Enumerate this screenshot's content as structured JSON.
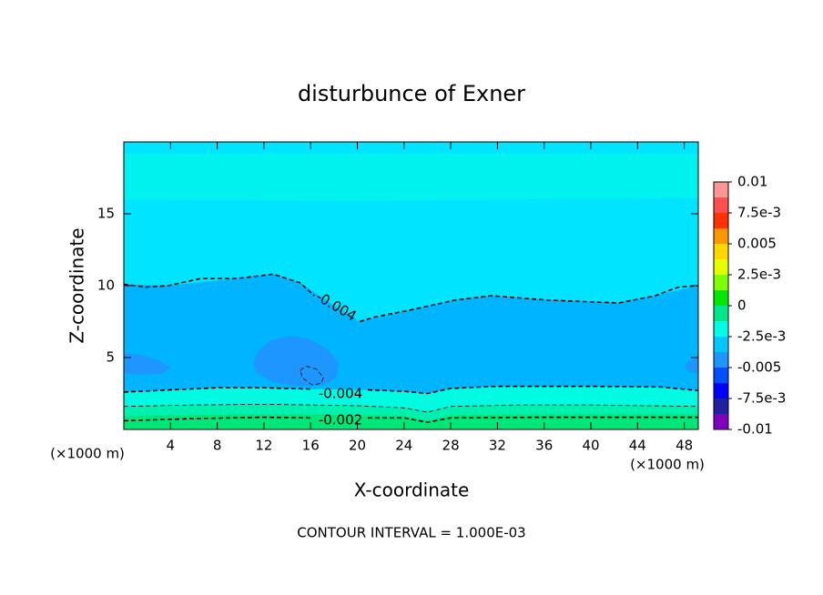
{
  "chart_data": {
    "type": "contour",
    "title": "disturbunce of Exner",
    "xlabel": "X-coordinate",
    "ylabel": "Z-coordinate",
    "x_unit_left": "(×1000 m)",
    "x_unit_right": "(×1000 m)",
    "annotation": "CONTOUR INTERVAL = 1.000E-03",
    "xlim": [
      0,
      49.2
    ],
    "ylim": [
      0,
      20
    ],
    "xticks": [
      4,
      8,
      12,
      16,
      20,
      24,
      28,
      32,
      36,
      40,
      44,
      48
    ],
    "yticks": [
      5,
      10,
      15
    ],
    "regions": [
      {
        "level": -0.003,
        "color": "#00e4ff",
        "x": [
          0,
          49.2,
          49.2,
          0
        ],
        "y": [
          0,
          0,
          20,
          20
        ]
      },
      {
        "level": -0.0025,
        "color": "#00f2ee",
        "x": [
          0,
          20,
          49.2,
          49.2,
          0
        ],
        "y": [
          16,
          15.9,
          16.1,
          19.2,
          19.2
        ]
      },
      {
        "level": -0.004,
        "color": "#00b4ff",
        "x": [
          0,
          3.8,
          9.7,
          12.8,
          15.1,
          18,
          20.2,
          24.5,
          28.4,
          31.5,
          36.2,
          42.4,
          45.5,
          49.2,
          49.2,
          40,
          32,
          28,
          26,
          24,
          20,
          16,
          12,
          8,
          4,
          0
        ],
        "y": [
          10.1,
          10,
          10.5,
          10.8,
          10.2,
          8.6,
          7.5,
          8.3,
          9.0,
          9.3,
          9.0,
          8.8,
          9.3,
          10.0,
          2.7,
          3.0,
          3.0,
          2.85,
          2.5,
          2.65,
          2.75,
          2.8,
          2.9,
          2.9,
          2.75,
          2.6
        ]
      },
      {
        "level": -0.005,
        "color": "#1e96ff",
        "x": [
          11.1,
          11.5,
          12.6,
          14.2,
          15.9,
          17.4,
          18.4,
          18.2,
          17.0,
          15.0,
          12.8,
          11.4
        ],
        "y": [
          4.6,
          5.5,
          6.2,
          6.5,
          6.3,
          5.6,
          4.6,
          3.6,
          3.1,
          3.0,
          3.3,
          3.9
        ]
      },
      {
        "level": -0.0045,
        "color": "#1e96ff",
        "x": [
          0,
          1.5,
          3.0,
          4.0,
          3.4,
          1.8,
          0
        ],
        "y": [
          5.3,
          5.2,
          4.8,
          4.3,
          3.9,
          3.8,
          3.9
        ]
      },
      {
        "level": -0.0044,
        "color": "#1e96ff",
        "x": [
          49.2,
          48.3,
          48,
          48.4,
          49.2
        ],
        "y": [
          5.0,
          4.7,
          4.4,
          4.0,
          3.9
        ]
      },
      {
        "level": -0.0035,
        "color": "#00fae2",
        "x": [
          0,
          4,
          8,
          12,
          16,
          20,
          24,
          26,
          28,
          32,
          40,
          46,
          49.2,
          49.2,
          0
        ],
        "y": [
          2.6,
          2.75,
          2.9,
          2.9,
          2.8,
          2.75,
          2.65,
          2.5,
          2.85,
          3.0,
          3.0,
          2.95,
          2.7,
          0,
          0
        ]
      },
      {
        "level": -0.0025,
        "color": "#00f0b0",
        "x": [
          0,
          6,
          12,
          20,
          24,
          26,
          28,
          34,
          40,
          49.2,
          49.2,
          0
        ],
        "y": [
          1.6,
          1.7,
          1.75,
          1.65,
          1.5,
          1.2,
          1.6,
          1.7,
          1.7,
          1.6,
          0,
          0
        ]
      },
      {
        "level": -0.0015,
        "color": "#00e678",
        "x": [
          0,
          6,
          12,
          20,
          24,
          26,
          28,
          36,
          49.2,
          49.2,
          0
        ],
        "y": [
          0.95,
          1.0,
          1.05,
          1.0,
          0.95,
          0.6,
          1.0,
          1.05,
          1.05,
          0,
          0
        ]
      }
    ],
    "contours": [
      {
        "level": -0.004,
        "width": 1.5,
        "x": [
          0,
          1.9,
          3.8,
          6.6,
          9.7,
          12.8,
          15.1,
          16.3,
          18.2,
          20.2,
          21.4,
          24.5,
          28.4,
          31.5,
          36.2,
          42.4,
          45.5,
          47.5,
          49.2
        ],
        "y": [
          10.1,
          9.9,
          10,
          10.5,
          10.5,
          10.8,
          10.2,
          9.3,
          null,
          7.5,
          7.8,
          8.3,
          9.0,
          9.3,
          9.0,
          8.8,
          9.3,
          9.9,
          10.0
        ]
      },
      {
        "level": -0.004,
        "width": 1.5,
        "x": [
          0,
          4,
          8,
          12,
          16.2,
          18.5,
          20.9,
          24,
          26,
          28,
          32,
          40,
          46,
          49.2
        ],
        "y": [
          2.6,
          2.75,
          2.9,
          2.9,
          2.8,
          null,
          2.75,
          2.65,
          2.5,
          2.85,
          3.0,
          3.0,
          2.95,
          2.7
        ]
      },
      {
        "level": -0.003,
        "width": 0.8,
        "x": [
          0,
          6,
          12,
          20,
          24,
          26,
          28,
          34,
          40,
          49.2
        ],
        "y": [
          1.6,
          1.7,
          1.75,
          1.65,
          1.5,
          1.2,
          1.6,
          1.7,
          1.7,
          1.6
        ]
      },
      {
        "level": -0.002,
        "width": 1.5,
        "x": [
          0,
          6,
          12,
          16.2,
          18.5,
          20.9,
          24,
          26,
          28,
          36,
          49.2
        ],
        "y": [
          0.6,
          0.75,
          0.85,
          0.8,
          null,
          0.8,
          0.8,
          0.5,
          0.8,
          0.85,
          0.85
        ]
      },
      {
        "level": -0.005,
        "width": 0.8,
        "x": [
          15.1,
          15.6,
          16.5,
          17.1,
          16.9,
          16.1,
          15.3,
          15.1
        ],
        "y": [
          4.1,
          4.4,
          4.2,
          3.6,
          3.2,
          3.1,
          3.6,
          4.1
        ]
      }
    ],
    "colorbar": {
      "clim": [
        -0.01,
        0.01
      ],
      "colors": [
        "#8000c0",
        "#2020a0",
        "#0000ff",
        "#0050ff",
        "#1e96ff",
        "#00c8ff",
        "#00ffe6",
        "#00e68c",
        "#00e600",
        "#80ff00",
        "#e6ff00",
        "#ffd700",
        "#ff9600",
        "#ff3200",
        "#ff5050",
        "#ff9696"
      ],
      "ticks": [
        0.01,
        {
          "value": 0.0075,
          "label": "7.5e-3"
        },
        0.005,
        {
          "value": 0.0025,
          "label": "2.5e-3"
        },
        0,
        {
          "value": -0.0025,
          "label": "-2.5e-3"
        },
        -0.005,
        {
          "value": -0.0075,
          "label": "-7.5e-3"
        },
        -0.01
      ]
    }
  }
}
